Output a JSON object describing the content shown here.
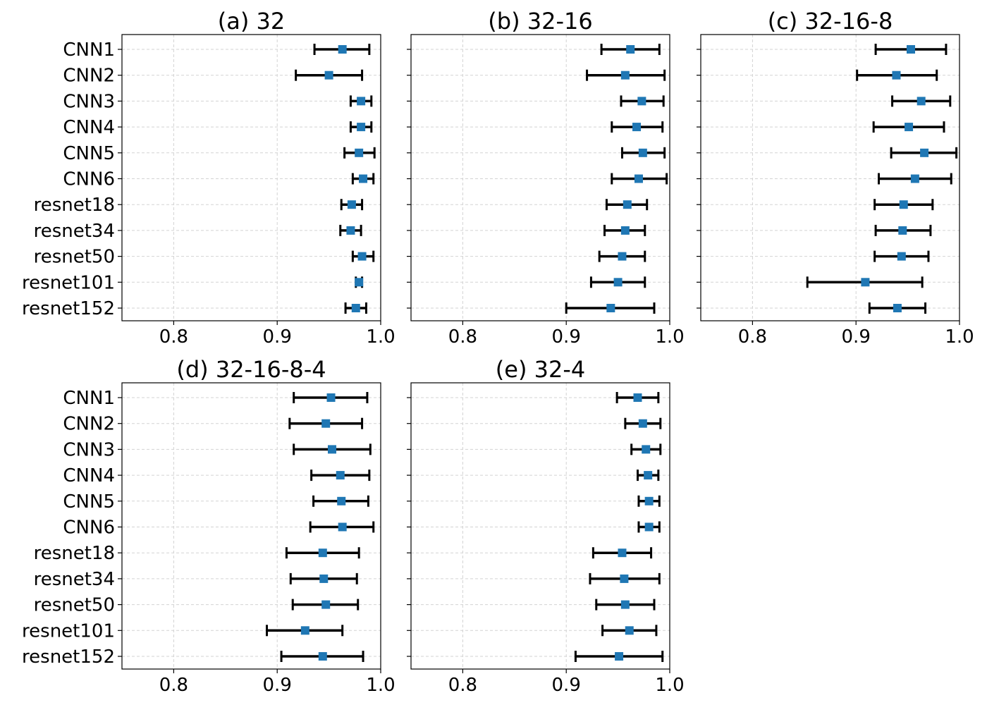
{
  "chart_data": [
    {
      "type": "errorbar",
      "title": "(a) 32",
      "show_ylabels": true,
      "categories": [
        "CNN1",
        "CNN2",
        "CNN3",
        "CNN4",
        "CNN5",
        "CNN6",
        "resnet18",
        "resnet34",
        "resnet50",
        "resnet101",
        "resnet152"
      ],
      "values": [
        0.963,
        0.95,
        0.981,
        0.981,
        0.979,
        0.983,
        0.972,
        0.971,
        0.982,
        0.979,
        0.976
      ],
      "lower": [
        0.936,
        0.918,
        0.971,
        0.971,
        0.965,
        0.973,
        0.962,
        0.961,
        0.973,
        0.976,
        0.966
      ],
      "upper": [
        0.989,
        0.982,
        0.991,
        0.991,
        0.994,
        0.993,
        0.982,
        0.981,
        0.993,
        0.982,
        0.986
      ],
      "xlim": [
        0.75,
        1.0
      ],
      "xticks": [
        "0.8",
        "0.9",
        "1.0"
      ],
      "grid": true
    },
    {
      "type": "errorbar",
      "title": "(b) 32-16",
      "show_ylabels": false,
      "categories": [
        "CNN1",
        "CNN2",
        "CNN3",
        "CNN4",
        "CNN5",
        "CNN6",
        "resnet18",
        "resnet34",
        "resnet50",
        "resnet101",
        "resnet152"
      ],
      "values": [
        0.962,
        0.957,
        0.973,
        0.968,
        0.974,
        0.97,
        0.959,
        0.957,
        0.954,
        0.95,
        0.943
      ],
      "lower": [
        0.934,
        0.92,
        0.953,
        0.944,
        0.954,
        0.944,
        0.939,
        0.937,
        0.932,
        0.924,
        0.9
      ],
      "upper": [
        0.99,
        0.995,
        0.994,
        0.993,
        0.995,
        0.997,
        0.978,
        0.976,
        0.976,
        0.976,
        0.985
      ],
      "xlim": [
        0.75,
        1.0
      ],
      "xticks": [
        "0.8",
        "0.9",
        "1.0"
      ],
      "grid": true
    },
    {
      "type": "errorbar",
      "title": "(c) 32-16-8",
      "show_ylabels": false,
      "categories": [
        "CNN1",
        "CNN2",
        "CNN3",
        "CNN4",
        "CNN5",
        "CNN6",
        "resnet18",
        "resnet34",
        "resnet50",
        "resnet101",
        "resnet152"
      ],
      "values": [
        0.953,
        0.939,
        0.963,
        0.951,
        0.966,
        0.957,
        0.946,
        0.945,
        0.944,
        0.909,
        0.94
      ],
      "lower": [
        0.919,
        0.901,
        0.935,
        0.917,
        0.934,
        0.922,
        0.918,
        0.919,
        0.918,
        0.853,
        0.913
      ],
      "upper": [
        0.987,
        0.978,
        0.991,
        0.985,
        0.997,
        0.992,
        0.974,
        0.972,
        0.97,
        0.964,
        0.967
      ],
      "xlim": [
        0.75,
        1.0
      ],
      "xticks": [
        "0.8",
        "0.9",
        "1.0"
      ],
      "grid": true
    },
    {
      "type": "errorbar",
      "title": "(d) 32-16-8-4",
      "show_ylabels": true,
      "categories": [
        "CNN1",
        "CNN2",
        "CNN3",
        "CNN4",
        "CNN5",
        "CNN6",
        "resnet18",
        "resnet34",
        "resnet50",
        "resnet101",
        "resnet152"
      ],
      "values": [
        0.952,
        0.947,
        0.953,
        0.961,
        0.962,
        0.963,
        0.944,
        0.945,
        0.947,
        0.927,
        0.944
      ],
      "lower": [
        0.916,
        0.912,
        0.916,
        0.933,
        0.935,
        0.932,
        0.909,
        0.913,
        0.915,
        0.89,
        0.904
      ],
      "upper": [
        0.987,
        0.982,
        0.99,
        0.989,
        0.988,
        0.993,
        0.979,
        0.977,
        0.978,
        0.963,
        0.983
      ],
      "xlim": [
        0.75,
        1.0
      ],
      "xticks": [
        "0.8",
        "0.9",
        "1.0"
      ],
      "grid": true
    },
    {
      "type": "errorbar",
      "title": "(e) 32-4",
      "show_ylabels": false,
      "categories": [
        "CNN1",
        "CNN2",
        "CNN3",
        "CNN4",
        "CNN5",
        "CNN6",
        "resnet18",
        "resnet34",
        "resnet50",
        "resnet101",
        "resnet152"
      ],
      "values": [
        0.969,
        0.974,
        0.977,
        0.979,
        0.98,
        0.98,
        0.954,
        0.956,
        0.957,
        0.961,
        0.951
      ],
      "lower": [
        0.949,
        0.957,
        0.963,
        0.969,
        0.97,
        0.97,
        0.926,
        0.923,
        0.929,
        0.935,
        0.909
      ],
      "upper": [
        0.989,
        0.991,
        0.991,
        0.989,
        0.99,
        0.99,
        0.982,
        0.99,
        0.985,
        0.987,
        0.993
      ],
      "xlim": [
        0.75,
        1.0
      ],
      "xticks": [
        "0.8",
        "0.9",
        "1.0"
      ],
      "grid": true
    }
  ],
  "colors": {
    "marker": "#1f77b4",
    "errorbar": "#000000",
    "grid": "#d3d3d3"
  }
}
